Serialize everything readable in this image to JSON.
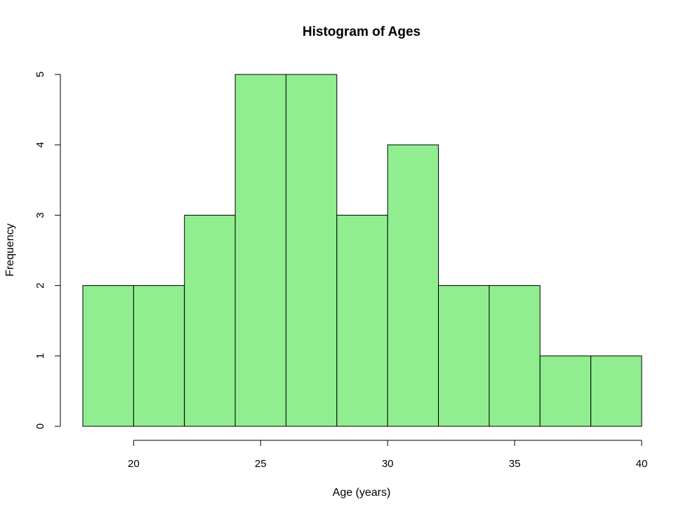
{
  "chart_data": {
    "type": "bar",
    "title": "Histogram of Ages",
    "xlabel": "Age (years)",
    "ylabel": "Frequency",
    "bins": [
      {
        "start": 18,
        "end": 20,
        "count": 2
      },
      {
        "start": 20,
        "end": 22,
        "count": 2
      },
      {
        "start": 22,
        "end": 24,
        "count": 3
      },
      {
        "start": 24,
        "end": 26,
        "count": 5
      },
      {
        "start": 26,
        "end": 28,
        "count": 5
      },
      {
        "start": 28,
        "end": 30,
        "count": 3
      },
      {
        "start": 30,
        "end": 32,
        "count": 4
      },
      {
        "start": 32,
        "end": 34,
        "count": 2
      },
      {
        "start": 34,
        "end": 36,
        "count": 2
      },
      {
        "start": 36,
        "end": 38,
        "count": 1
      },
      {
        "start": 38,
        "end": 40,
        "count": 1
      }
    ],
    "x_ticks": [
      20,
      25,
      30,
      35,
      40
    ],
    "y_ticks": [
      0,
      1,
      2,
      3,
      4,
      5
    ],
    "xlim": [
      18,
      40
    ],
    "ylim": [
      0,
      5
    ],
    "grid": false,
    "legend": false,
    "colors": {
      "bar_fill": "#90ee90",
      "bar_stroke": "#000000"
    }
  }
}
